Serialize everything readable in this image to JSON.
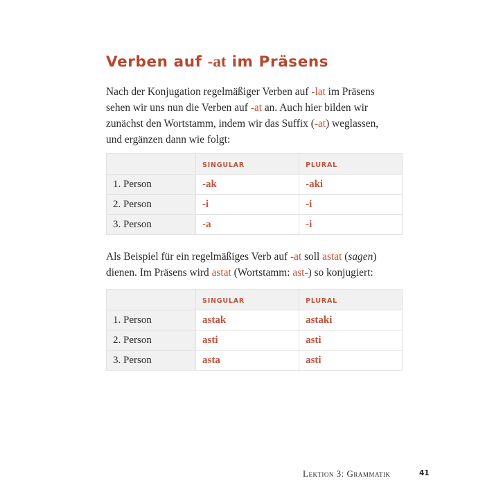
{
  "title": {
    "part1": "Verben auf ",
    "suffix": "-at",
    "part2": " im Präsens"
  },
  "paragraph1": [
    {
      "t": "Nach der Konjugation regelmäßiger Verben auf ",
      "hl": false
    },
    {
      "t": "-lat",
      "hl": true
    },
    {
      "t": " im Präsens",
      "hl": false
    },
    {
      "t": "sehen wir uns nun die Verben auf ",
      "hl": false
    },
    {
      "t": "-at",
      "hl": true
    },
    {
      "t": " an. Auch hier bilden wir",
      "hl": false
    },
    {
      "t": "zunächst den Wortstamm, indem wir das Suffix (",
      "hl": false
    },
    {
      "t": "-at",
      "hl": true
    },
    {
      "t": ") weglassen,",
      "hl": false
    },
    {
      "t": "und ergänzen dann wie folgt:",
      "hl": false
    }
  ],
  "table1": {
    "headers": [
      "",
      "SINGULAR",
      "PLURAL"
    ],
    "rows": [
      [
        "1. Person",
        "-ak",
        "-aki"
      ],
      [
        "2. Person",
        "-i",
        "-i"
      ],
      [
        "3. Person",
        "-a",
        "-i"
      ]
    ]
  },
  "paragraph2": [
    {
      "t": "Als Beispiel für ein regelmäßiges Verb auf ",
      "hl": false
    },
    {
      "t": "-at",
      "hl": true
    },
    {
      "t": " soll ",
      "hl": false
    },
    {
      "t": "astat",
      "hl": true
    },
    {
      "t": " (",
      "hl": false
    },
    {
      "t": "sagen",
      "hl": false
    },
    {
      "t": ")",
      "hl": false
    },
    {
      "t": "dienen. Im Präsens wird ",
      "hl": false
    },
    {
      "t": "astat",
      "hl": true
    },
    {
      "t": " (Wortstamm: ",
      "hl": false
    },
    {
      "t": "ast-",
      "hl": true
    },
    {
      "t": ") so konjugiert:",
      "hl": false
    }
  ],
  "table2": {
    "headers": [
      "",
      "SINGULAR",
      "PLURAL"
    ],
    "rows": [
      [
        "1. Person",
        "astak",
        "astaki"
      ],
      [
        "2. Person",
        "asti",
        "asti"
      ],
      [
        "3. Person",
        "asta",
        "asti"
      ]
    ]
  },
  "footer": {
    "section": "Lektion 3: Grammatik",
    "page": "41"
  },
  "colors": {
    "accent": "#c0523a",
    "table_shade": "#f1f1f1"
  }
}
